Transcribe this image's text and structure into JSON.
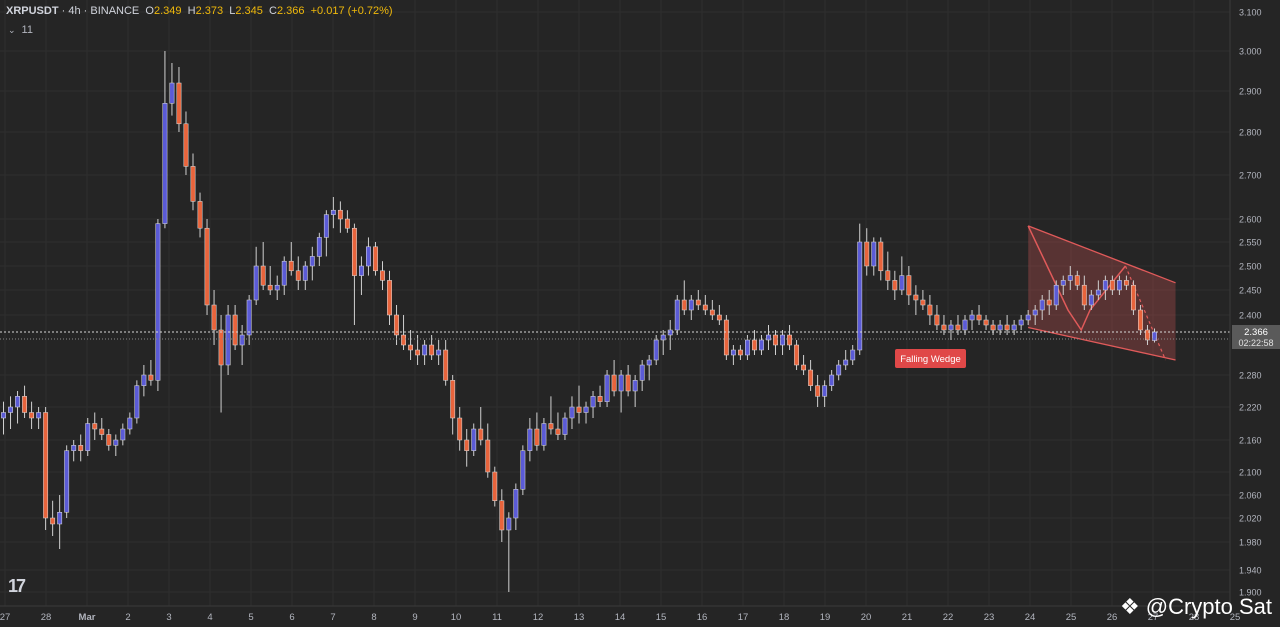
{
  "header": {
    "symbol": "XRPUSDT",
    "interval": "4h",
    "exchange": "BINANCE",
    "open_label": "O",
    "open": "2.349",
    "high_label": "H",
    "high": "2.373",
    "low_label": "L",
    "low": "2.345",
    "close_label": "C",
    "close": "2.366",
    "change": "+0.017 (+0.72%)",
    "sep": " · ",
    "indicator_count": "11"
  },
  "price_tag": {
    "price": "2.366",
    "countdown": "02:22:58"
  },
  "annotation": {
    "pattern_label": "Falling Wedge"
  },
  "watermark": {
    "text": "@Crypto Sat",
    "logo": "tradingview-logo"
  },
  "colors": {
    "background": "#252525",
    "up_candle": "#5b5bd6",
    "down_candle": "#e8643c",
    "wedge": "#e05a5a",
    "label_bg": "#e04848",
    "price_tag_bg": "#5a5a5a"
  },
  "chart_data": {
    "type": "candlestick",
    "y_ticks": [
      "3.100",
      "3.000",
      "2.900",
      "2.800",
      "2.700",
      "2.600",
      "2.550",
      "2.500",
      "2.450",
      "2.400",
      "2.280",
      "2.220",
      "2.160",
      "2.100",
      "2.060",
      "2.020",
      "1.980",
      "1.940",
      "1.900"
    ],
    "ylim": [
      1.895,
      3.12
    ],
    "x_ticks": [
      "27",
      "28",
      "Mar",
      "2",
      "3",
      "4",
      "5",
      "6",
      "7",
      "8",
      "9",
      "10",
      "11",
      "12",
      "13",
      "14",
      "15",
      "16",
      "17",
      "18",
      "19",
      "20",
      "21",
      "22",
      "23",
      "24",
      "25",
      "26",
      "27",
      "28",
      "25"
    ],
    "current_price": 2.366,
    "candles": [
      {
        "o": 2.2,
        "h": 2.23,
        "l": 2.17,
        "c": 2.21
      },
      {
        "o": 2.21,
        "h": 2.24,
        "l": 2.18,
        "c": 2.22
      },
      {
        "o": 2.22,
        "h": 2.25,
        "l": 2.19,
        "c": 2.24
      },
      {
        "o": 2.24,
        "h": 2.26,
        "l": 2.2,
        "c": 2.21
      },
      {
        "o": 2.21,
        "h": 2.23,
        "l": 2.18,
        "c": 2.2
      },
      {
        "o": 2.2,
        "h": 2.22,
        "l": 2.18,
        "c": 2.21
      },
      {
        "o": 2.21,
        "h": 2.22,
        "l": 2.0,
        "c": 2.02
      },
      {
        "o": 2.02,
        "h": 2.05,
        "l": 1.99,
        "c": 2.01
      },
      {
        "o": 2.01,
        "h": 2.06,
        "l": 1.97,
        "c": 2.03
      },
      {
        "o": 2.03,
        "h": 2.15,
        "l": 2.02,
        "c": 2.14
      },
      {
        "o": 2.14,
        "h": 2.16,
        "l": 2.12,
        "c": 2.15
      },
      {
        "o": 2.15,
        "h": 2.17,
        "l": 2.12,
        "c": 2.14
      },
      {
        "o": 2.14,
        "h": 2.2,
        "l": 2.13,
        "c": 2.19
      },
      {
        "o": 2.19,
        "h": 2.21,
        "l": 2.16,
        "c": 2.18
      },
      {
        "o": 2.18,
        "h": 2.2,
        "l": 2.16,
        "c": 2.17
      },
      {
        "o": 2.17,
        "h": 2.18,
        "l": 2.14,
        "c": 2.15
      },
      {
        "o": 2.15,
        "h": 2.17,
        "l": 2.13,
        "c": 2.16
      },
      {
        "o": 2.16,
        "h": 2.19,
        "l": 2.15,
        "c": 2.18
      },
      {
        "o": 2.18,
        "h": 2.21,
        "l": 2.17,
        "c": 2.2
      },
      {
        "o": 2.2,
        "h": 2.27,
        "l": 2.19,
        "c": 2.26
      },
      {
        "o": 2.26,
        "h": 2.3,
        "l": 2.24,
        "c": 2.28
      },
      {
        "o": 2.28,
        "h": 2.31,
        "l": 2.26,
        "c": 2.27
      },
      {
        "o": 2.27,
        "h": 2.6,
        "l": 2.25,
        "c": 2.59
      },
      {
        "o": 2.59,
        "h": 3.0,
        "l": 2.58,
        "c": 2.87
      },
      {
        "o": 2.87,
        "h": 2.97,
        "l": 2.84,
        "c": 2.92
      },
      {
        "o": 2.92,
        "h": 2.96,
        "l": 2.8,
        "c": 2.82
      },
      {
        "o": 2.82,
        "h": 2.85,
        "l": 2.7,
        "c": 2.72
      },
      {
        "o": 2.72,
        "h": 2.75,
        "l": 2.62,
        "c": 2.64
      },
      {
        "o": 2.64,
        "h": 2.66,
        "l": 2.56,
        "c": 2.58
      },
      {
        "o": 2.58,
        "h": 2.6,
        "l": 2.4,
        "c": 2.42
      },
      {
        "o": 2.42,
        "h": 2.45,
        "l": 2.34,
        "c": 2.37
      },
      {
        "o": 2.37,
        "h": 2.4,
        "l": 2.21,
        "c": 2.3
      },
      {
        "o": 2.3,
        "h": 2.42,
        "l": 2.28,
        "c": 2.4
      },
      {
        "o": 2.4,
        "h": 2.42,
        "l": 2.33,
        "c": 2.34
      },
      {
        "o": 2.34,
        "h": 2.38,
        "l": 2.3,
        "c": 2.36
      },
      {
        "o": 2.36,
        "h": 2.44,
        "l": 2.34,
        "c": 2.43
      },
      {
        "o": 2.43,
        "h": 2.54,
        "l": 2.42,
        "c": 2.5
      },
      {
        "o": 2.5,
        "h": 2.55,
        "l": 2.45,
        "c": 2.46
      },
      {
        "o": 2.46,
        "h": 2.5,
        "l": 2.44,
        "c": 2.45
      },
      {
        "o": 2.45,
        "h": 2.48,
        "l": 2.43,
        "c": 2.46
      },
      {
        "o": 2.46,
        "h": 2.52,
        "l": 2.44,
        "c": 2.51
      },
      {
        "o": 2.51,
        "h": 2.55,
        "l": 2.48,
        "c": 2.49
      },
      {
        "o": 2.49,
        "h": 2.52,
        "l": 2.45,
        "c": 2.47
      },
      {
        "o": 2.47,
        "h": 2.51,
        "l": 2.45,
        "c": 2.5
      },
      {
        "o": 2.5,
        "h": 2.54,
        "l": 2.47,
        "c": 2.52
      },
      {
        "o": 2.52,
        "h": 2.57,
        "l": 2.5,
        "c": 2.56
      },
      {
        "o": 2.56,
        "h": 2.62,
        "l": 2.52,
        "c": 2.61
      },
      {
        "o": 2.61,
        "h": 2.65,
        "l": 2.58,
        "c": 2.62
      },
      {
        "o": 2.62,
        "h": 2.64,
        "l": 2.57,
        "c": 2.6
      },
      {
        "o": 2.6,
        "h": 2.62,
        "l": 2.57,
        "c": 2.58
      },
      {
        "o": 2.58,
        "h": 2.59,
        "l": 2.38,
        "c": 2.48
      },
      {
        "o": 2.48,
        "h": 2.52,
        "l": 2.44,
        "c": 2.5
      },
      {
        "o": 2.5,
        "h": 2.56,
        "l": 2.48,
        "c": 2.54
      },
      {
        "o": 2.54,
        "h": 2.55,
        "l": 2.48,
        "c": 2.49
      },
      {
        "o": 2.49,
        "h": 2.51,
        "l": 2.45,
        "c": 2.47
      },
      {
        "o": 2.47,
        "h": 2.49,
        "l": 2.38,
        "c": 2.4
      },
      {
        "o": 2.4,
        "h": 2.42,
        "l": 2.34,
        "c": 2.36
      },
      {
        "o": 2.36,
        "h": 2.4,
        "l": 2.33,
        "c": 2.34
      },
      {
        "o": 2.34,
        "h": 2.37,
        "l": 2.31,
        "c": 2.33
      },
      {
        "o": 2.33,
        "h": 2.36,
        "l": 2.3,
        "c": 2.32
      },
      {
        "o": 2.32,
        "h": 2.35,
        "l": 2.3,
        "c": 2.34
      },
      {
        "o": 2.34,
        "h": 2.36,
        "l": 2.31,
        "c": 2.32
      },
      {
        "o": 2.32,
        "h": 2.35,
        "l": 2.3,
        "c": 2.33
      },
      {
        "o": 2.33,
        "h": 2.35,
        "l": 2.26,
        "c": 2.27
      },
      {
        "o": 2.27,
        "h": 2.28,
        "l": 2.17,
        "c": 2.2
      },
      {
        "o": 2.2,
        "h": 2.22,
        "l": 2.14,
        "c": 2.16
      },
      {
        "o": 2.16,
        "h": 2.18,
        "l": 2.11,
        "c": 2.14
      },
      {
        "o": 2.14,
        "h": 2.19,
        "l": 2.13,
        "c": 2.18
      },
      {
        "o": 2.18,
        "h": 2.22,
        "l": 2.15,
        "c": 2.16
      },
      {
        "o": 2.16,
        "h": 2.19,
        "l": 2.09,
        "c": 2.1
      },
      {
        "o": 2.1,
        "h": 2.11,
        "l": 2.04,
        "c": 2.05
      },
      {
        "o": 2.05,
        "h": 2.07,
        "l": 1.98,
        "c": 2.0
      },
      {
        "o": 2.0,
        "h": 2.03,
        "l": 1.9,
        "c": 2.02
      },
      {
        "o": 2.02,
        "h": 2.08,
        "l": 2.0,
        "c": 2.07
      },
      {
        "o": 2.07,
        "h": 2.15,
        "l": 2.06,
        "c": 2.14
      },
      {
        "o": 2.14,
        "h": 2.2,
        "l": 2.12,
        "c": 2.18
      },
      {
        "o": 2.18,
        "h": 2.21,
        "l": 2.14,
        "c": 2.15
      },
      {
        "o": 2.15,
        "h": 2.2,
        "l": 2.14,
        "c": 2.19
      },
      {
        "o": 2.19,
        "h": 2.24,
        "l": 2.17,
        "c": 2.18
      },
      {
        "o": 2.18,
        "h": 2.21,
        "l": 2.16,
        "c": 2.17
      },
      {
        "o": 2.17,
        "h": 2.21,
        "l": 2.16,
        "c": 2.2
      },
      {
        "o": 2.2,
        "h": 2.24,
        "l": 2.18,
        "c": 2.22
      },
      {
        "o": 2.22,
        "h": 2.26,
        "l": 2.19,
        "c": 2.21
      },
      {
        "o": 2.21,
        "h": 2.23,
        "l": 2.19,
        "c": 2.22
      },
      {
        "o": 2.22,
        "h": 2.25,
        "l": 2.2,
        "c": 2.24
      },
      {
        "o": 2.24,
        "h": 2.26,
        "l": 2.22,
        "c": 2.23
      },
      {
        "o": 2.23,
        "h": 2.29,
        "l": 2.22,
        "c": 2.28
      },
      {
        "o": 2.28,
        "h": 2.31,
        "l": 2.24,
        "c": 2.25
      },
      {
        "o": 2.25,
        "h": 2.29,
        "l": 2.21,
        "c": 2.28
      },
      {
        "o": 2.28,
        "h": 2.3,
        "l": 2.24,
        "c": 2.25
      },
      {
        "o": 2.25,
        "h": 2.28,
        "l": 2.22,
        "c": 2.27
      },
      {
        "o": 2.27,
        "h": 2.31,
        "l": 2.25,
        "c": 2.3
      },
      {
        "o": 2.3,
        "h": 2.32,
        "l": 2.27,
        "c": 2.31
      },
      {
        "o": 2.31,
        "h": 2.36,
        "l": 2.3,
        "c": 2.35
      },
      {
        "o": 2.35,
        "h": 2.37,
        "l": 2.32,
        "c": 2.36
      },
      {
        "o": 2.36,
        "h": 2.39,
        "l": 2.33,
        "c": 2.37
      },
      {
        "o": 2.37,
        "h": 2.44,
        "l": 2.36,
        "c": 2.43
      },
      {
        "o": 2.43,
        "h": 2.47,
        "l": 2.4,
        "c": 2.41
      },
      {
        "o": 2.41,
        "h": 2.44,
        "l": 2.39,
        "c": 2.43
      },
      {
        "o": 2.43,
        "h": 2.45,
        "l": 2.41,
        "c": 2.42
      },
      {
        "o": 2.42,
        "h": 2.44,
        "l": 2.4,
        "c": 2.41
      },
      {
        "o": 2.41,
        "h": 2.43,
        "l": 2.39,
        "c": 2.4
      },
      {
        "o": 2.4,
        "h": 2.42,
        "l": 2.38,
        "c": 2.39
      },
      {
        "o": 2.39,
        "h": 2.4,
        "l": 2.31,
        "c": 2.32
      },
      {
        "o": 2.32,
        "h": 2.34,
        "l": 2.3,
        "c": 2.33
      },
      {
        "o": 2.33,
        "h": 2.34,
        "l": 2.31,
        "c": 2.32
      },
      {
        "o": 2.32,
        "h": 2.36,
        "l": 2.31,
        "c": 2.35
      },
      {
        "o": 2.35,
        "h": 2.37,
        "l": 2.32,
        "c": 2.33
      },
      {
        "o": 2.33,
        "h": 2.36,
        "l": 2.32,
        "c": 2.35
      },
      {
        "o": 2.35,
        "h": 2.38,
        "l": 2.33,
        "c": 2.36
      },
      {
        "o": 2.36,
        "h": 2.37,
        "l": 2.32,
        "c": 2.34
      },
      {
        "o": 2.34,
        "h": 2.37,
        "l": 2.32,
        "c": 2.36
      },
      {
        "o": 2.36,
        "h": 2.38,
        "l": 2.33,
        "c": 2.34
      },
      {
        "o": 2.34,
        "h": 2.35,
        "l": 2.29,
        "c": 2.3
      },
      {
        "o": 2.3,
        "h": 2.32,
        "l": 2.28,
        "c": 2.29
      },
      {
        "o": 2.29,
        "h": 2.31,
        "l": 2.25,
        "c": 2.26
      },
      {
        "o": 2.26,
        "h": 2.28,
        "l": 2.22,
        "c": 2.24
      },
      {
        "o": 2.24,
        "h": 2.27,
        "l": 2.22,
        "c": 2.26
      },
      {
        "o": 2.26,
        "h": 2.29,
        "l": 2.25,
        "c": 2.28
      },
      {
        "o": 2.28,
        "h": 2.31,
        "l": 2.27,
        "c": 2.3
      },
      {
        "o": 2.3,
        "h": 2.33,
        "l": 2.29,
        "c": 2.31
      },
      {
        "o": 2.31,
        "h": 2.34,
        "l": 2.3,
        "c": 2.33
      },
      {
        "o": 2.33,
        "h": 2.59,
        "l": 2.32,
        "c": 2.55
      },
      {
        "o": 2.55,
        "h": 2.58,
        "l": 2.48,
        "c": 2.5
      },
      {
        "o": 2.5,
        "h": 2.56,
        "l": 2.48,
        "c": 2.55
      },
      {
        "o": 2.55,
        "h": 2.56,
        "l": 2.47,
        "c": 2.49
      },
      {
        "o": 2.49,
        "h": 2.53,
        "l": 2.45,
        "c": 2.47
      },
      {
        "o": 2.47,
        "h": 2.49,
        "l": 2.43,
        "c": 2.45
      },
      {
        "o": 2.45,
        "h": 2.52,
        "l": 2.44,
        "c": 2.48
      },
      {
        "o": 2.48,
        "h": 2.5,
        "l": 2.42,
        "c": 2.44
      },
      {
        "o": 2.44,
        "h": 2.46,
        "l": 2.4,
        "c": 2.43
      },
      {
        "o": 2.43,
        "h": 2.45,
        "l": 2.41,
        "c": 2.42
      },
      {
        "o": 2.42,
        "h": 2.44,
        "l": 2.38,
        "c": 2.4
      },
      {
        "o": 2.4,
        "h": 2.42,
        "l": 2.37,
        "c": 2.38
      },
      {
        "o": 2.38,
        "h": 2.4,
        "l": 2.36,
        "c": 2.37
      },
      {
        "o": 2.37,
        "h": 2.39,
        "l": 2.35,
        "c": 2.38
      },
      {
        "o": 2.38,
        "h": 2.4,
        "l": 2.36,
        "c": 2.37
      },
      {
        "o": 2.37,
        "h": 2.4,
        "l": 2.36,
        "c": 2.39
      },
      {
        "o": 2.39,
        "h": 2.41,
        "l": 2.37,
        "c": 2.4
      },
      {
        "o": 2.4,
        "h": 2.42,
        "l": 2.38,
        "c": 2.39
      },
      {
        "o": 2.39,
        "h": 2.4,
        "l": 2.37,
        "c": 2.38
      },
      {
        "o": 2.38,
        "h": 2.39,
        "l": 2.36,
        "c": 2.37
      },
      {
        "o": 2.37,
        "h": 2.39,
        "l": 2.36,
        "c": 2.38
      },
      {
        "o": 2.38,
        "h": 2.4,
        "l": 2.36,
        "c": 2.37
      },
      {
        "o": 2.37,
        "h": 2.39,
        "l": 2.36,
        "c": 2.38
      },
      {
        "o": 2.38,
        "h": 2.4,
        "l": 2.37,
        "c": 2.39
      },
      {
        "o": 2.39,
        "h": 2.41,
        "l": 2.38,
        "c": 2.4
      },
      {
        "o": 2.4,
        "h": 2.42,
        "l": 2.38,
        "c": 2.41
      },
      {
        "o": 2.41,
        "h": 2.44,
        "l": 2.39,
        "c": 2.43
      },
      {
        "o": 2.43,
        "h": 2.45,
        "l": 2.4,
        "c": 2.42
      },
      {
        "o": 2.42,
        "h": 2.47,
        "l": 2.41,
        "c": 2.46
      },
      {
        "o": 2.46,
        "h": 2.48,
        "l": 2.44,
        "c": 2.47
      },
      {
        "o": 2.47,
        "h": 2.5,
        "l": 2.45,
        "c": 2.48
      },
      {
        "o": 2.48,
        "h": 2.49,
        "l": 2.45,
        "c": 2.46
      },
      {
        "o": 2.46,
        "h": 2.48,
        "l": 2.41,
        "c": 2.42
      },
      {
        "o": 2.42,
        "h": 2.45,
        "l": 2.41,
        "c": 2.44
      },
      {
        "o": 2.44,
        "h": 2.47,
        "l": 2.43,
        "c": 2.45
      },
      {
        "o": 2.45,
        "h": 2.48,
        "l": 2.43,
        "c": 2.47
      },
      {
        "o": 2.47,
        "h": 2.48,
        "l": 2.44,
        "c": 2.45
      },
      {
        "o": 2.45,
        "h": 2.48,
        "l": 2.44,
        "c": 2.47
      },
      {
        "o": 2.47,
        "h": 2.48,
        "l": 2.45,
        "c": 2.46
      },
      {
        "o": 2.46,
        "h": 2.47,
        "l": 2.4,
        "c": 2.41
      },
      {
        "o": 2.41,
        "h": 2.42,
        "l": 2.36,
        "c": 2.37
      },
      {
        "o": 2.37,
        "h": 2.38,
        "l": 2.34,
        "c": 2.35
      },
      {
        "o": 2.349,
        "h": 2.373,
        "l": 2.345,
        "c": 2.366
      }
    ],
    "wedge": {
      "upper": [
        [
          0,
          2.585
        ],
        [
          1,
          2.465
        ]
      ],
      "lower": [
        [
          0,
          2.375
        ],
        [
          1,
          2.31
        ]
      ],
      "zigzag": [
        2.585,
        2.41,
        2.37,
        2.41,
        2.5,
        2.31
      ]
    }
  }
}
